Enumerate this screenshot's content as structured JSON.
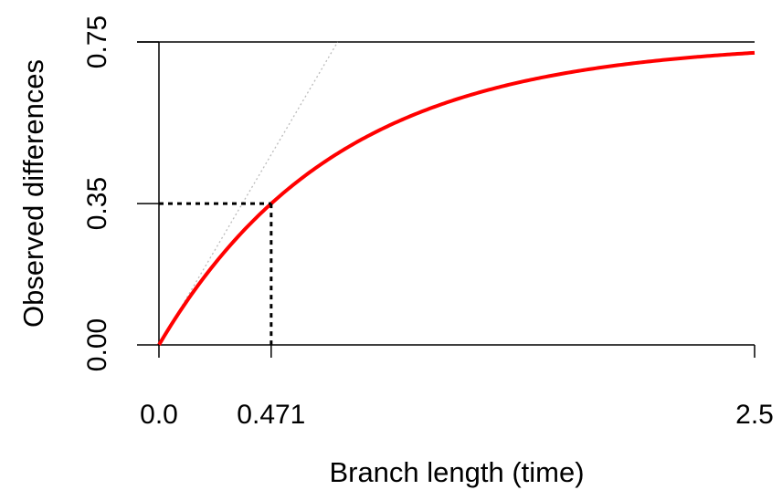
{
  "chart_data": {
    "type": "line",
    "title": "",
    "xlabel": "Branch length (time)",
    "ylabel": "Observed differences",
    "xlim": [
      0,
      2.5
    ],
    "ylim": [
      0,
      0.75
    ],
    "x_ticks": [
      {
        "value": 0,
        "label": "0.0"
      },
      {
        "value": 0.471,
        "label": "0.471"
      },
      {
        "value": 2.5,
        "label": "2.5"
      }
    ],
    "y_ticks": [
      {
        "value": 0,
        "label": "0.00"
      },
      {
        "value": 0.35,
        "label": "0.35"
      },
      {
        "value": 0.75,
        "label": "0.75"
      }
    ],
    "grid": false,
    "series": [
      {
        "style": "solid",
        "color": "#ff0000",
        "function": "0.75 * (1 - exp(-4x/3))",
        "x_range": [
          0,
          2.5
        ]
      },
      {
        "style": "dotted",
        "color": "#bbbbbb",
        "function": "x",
        "x_range": [
          0,
          0.75
        ]
      }
    ],
    "annotations": [
      {
        "type": "dashed-guide",
        "x": 0.471,
        "y": 0.35,
        "color": "#000000"
      }
    ],
    "reference_lines": [
      {
        "orientation": "horizontal",
        "y": 0.75,
        "color": "#000000"
      }
    ]
  }
}
